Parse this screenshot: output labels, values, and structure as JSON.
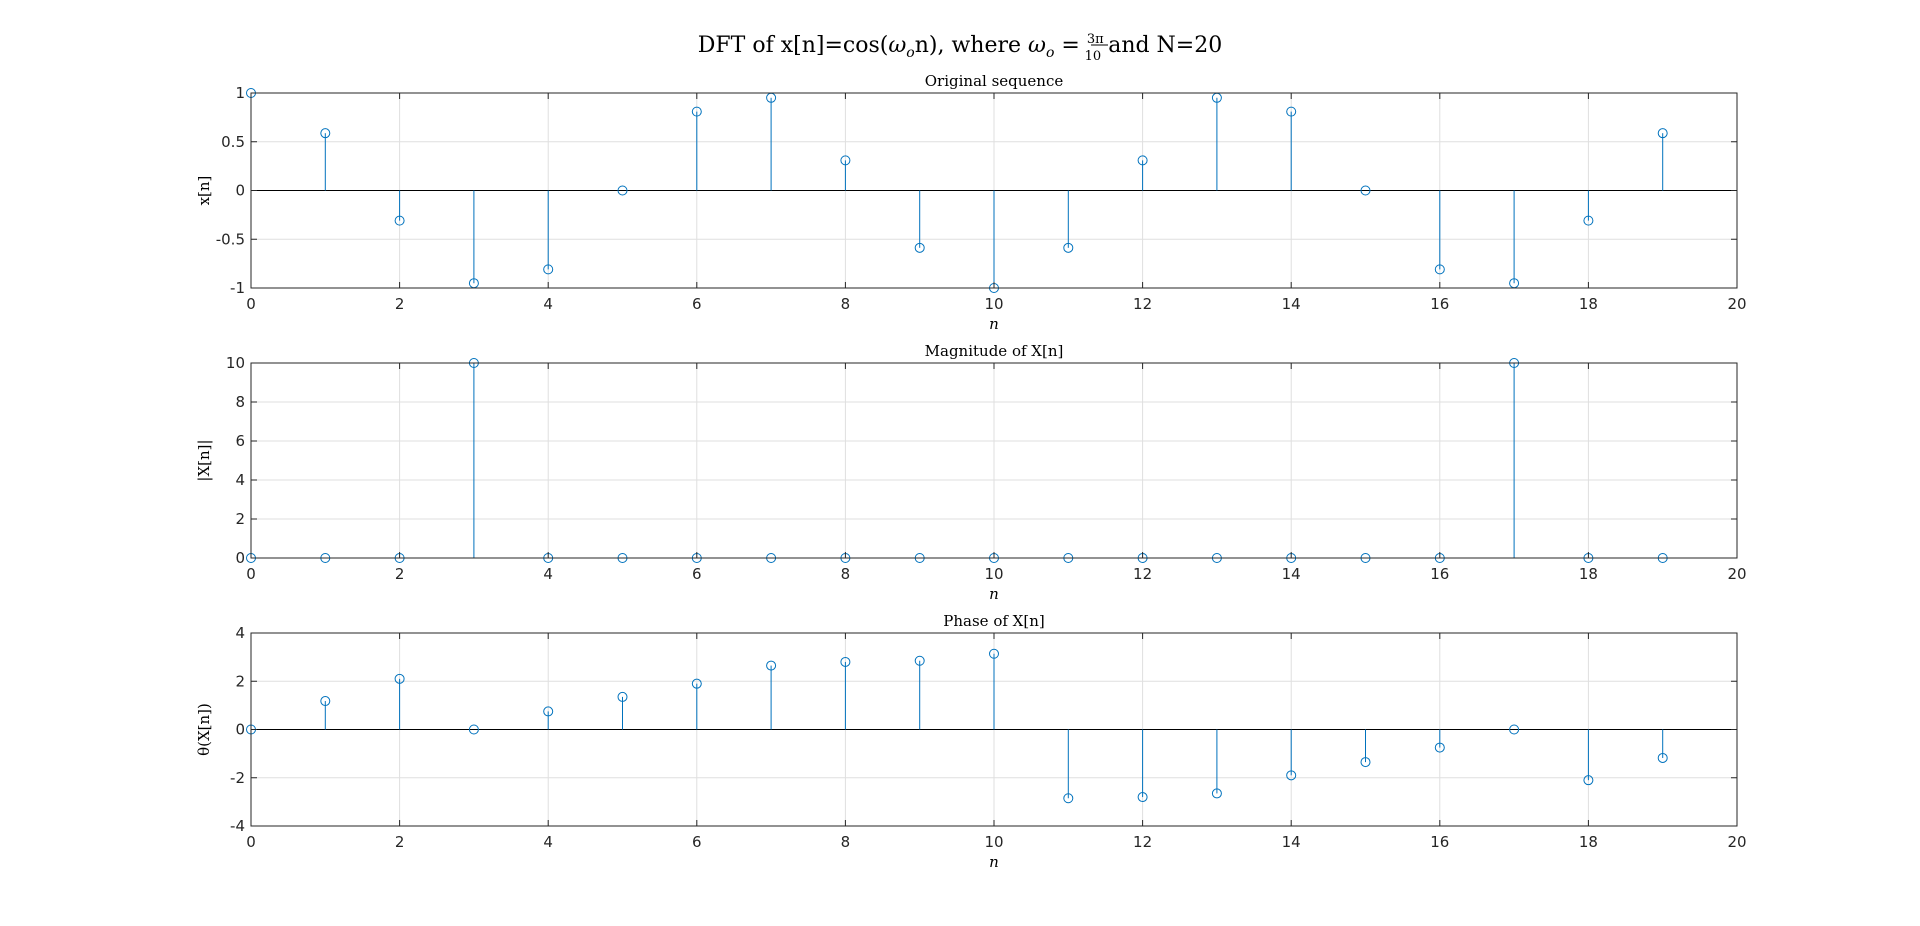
{
  "figure": {
    "title_parts": {
      "pre": "DFT of x[n]=cos(",
      "omega": "ω",
      "omega_sub": "o",
      "mid": "n), where ",
      "omega2": "ω",
      "omega2_sub": "o",
      "eq": " = ",
      "frac_num": "3π",
      "frac_den": "10",
      "post": " and N=20"
    }
  },
  "colors": {
    "stem": "#0072BD",
    "axes": "#262626",
    "grid": "#DFDFDF",
    "baseline": "#000000"
  },
  "chart_data": [
    {
      "type": "stem",
      "title": "Original sequence",
      "xlabel": "n",
      "ylabel": "x[n]",
      "xlim": [
        0,
        20
      ],
      "ylim": [
        -1,
        1
      ],
      "xticks": [
        0,
        2,
        4,
        6,
        8,
        10,
        12,
        14,
        16,
        18,
        20
      ],
      "yticks": [
        -1,
        -0.5,
        0,
        0.5,
        1
      ],
      "ytick_labels": [
        "-1",
        "-0.5",
        "0",
        "0.5",
        "1"
      ],
      "grid": true,
      "x": [
        0,
        1,
        2,
        3,
        4,
        5,
        6,
        7,
        8,
        9,
        10,
        11,
        12,
        13,
        14,
        15,
        16,
        17,
        18,
        19
      ],
      "y": [
        1,
        0.588,
        -0.309,
        -0.951,
        -0.809,
        0,
        0.809,
        0.951,
        0.309,
        -0.588,
        -1,
        -0.588,
        0.309,
        0.951,
        0.809,
        0,
        -0.809,
        -0.951,
        -0.309,
        0.588
      ]
    },
    {
      "type": "stem",
      "title": "Magnitude of X[n]",
      "xlabel": "n",
      "ylabel": "|X[n]|",
      "xlim": [
        0,
        20
      ],
      "ylim": [
        0,
        10
      ],
      "xticks": [
        0,
        2,
        4,
        6,
        8,
        10,
        12,
        14,
        16,
        18,
        20
      ],
      "yticks": [
        0,
        2,
        4,
        6,
        8,
        10
      ],
      "ytick_labels": [
        "0",
        "2",
        "4",
        "6",
        "8",
        "10"
      ],
      "grid": true,
      "x": [
        0,
        1,
        2,
        3,
        4,
        5,
        6,
        7,
        8,
        9,
        10,
        11,
        12,
        13,
        14,
        15,
        16,
        17,
        18,
        19
      ],
      "y": [
        0,
        0,
        0,
        10,
        0,
        0,
        0,
        0,
        0,
        0,
        0,
        0,
        0,
        0,
        0,
        0,
        0,
        10,
        0,
        0
      ]
    },
    {
      "type": "stem",
      "title": "Phase of X[n]",
      "xlabel": "n",
      "ylabel": "θ(X[n])",
      "xlim": [
        0,
        20
      ],
      "ylim": [
        -4,
        4
      ],
      "xticks": [
        0,
        2,
        4,
        6,
        8,
        10,
        12,
        14,
        16,
        18,
        20
      ],
      "yticks": [
        -4,
        -2,
        0,
        2,
        4
      ],
      "ytick_labels": [
        "-4",
        "-2",
        "0",
        "2",
        "4"
      ],
      "grid": true,
      "x": [
        0,
        1,
        2,
        3,
        4,
        5,
        6,
        7,
        8,
        9,
        10,
        11,
        12,
        13,
        14,
        15,
        16,
        17,
        18,
        19
      ],
      "y": [
        0,
        1.18,
        2.1,
        0,
        0.75,
        1.35,
        1.9,
        2.65,
        2.8,
        2.85,
        3.14,
        -2.85,
        -2.8,
        -2.65,
        -1.9,
        -1.35,
        -0.75,
        0,
        -2.1,
        -1.18
      ]
    }
  ]
}
